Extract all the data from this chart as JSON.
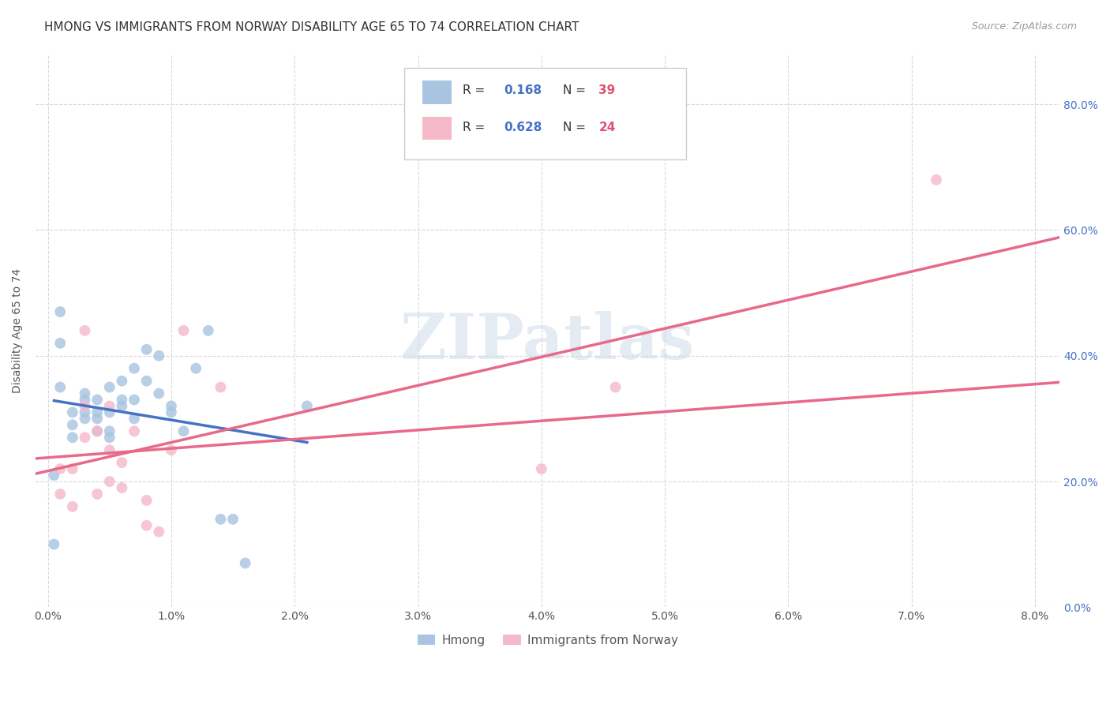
{
  "title": "HMONG VS IMMIGRANTS FROM NORWAY DISABILITY AGE 65 TO 74 CORRELATION CHART",
  "source": "Source: ZipAtlas.com",
  "ylabel_label": "Disability Age 65 to 74",
  "x_ticks": [
    0.0,
    0.01,
    0.02,
    0.03,
    0.04,
    0.05,
    0.06,
    0.07,
    0.08
  ],
  "x_tick_labels": [
    "0.0%",
    "1.0%",
    "2.0%",
    "3.0%",
    "4.0%",
    "5.0%",
    "6.0%",
    "7.0%",
    "8.0%"
  ],
  "y_ticks": [
    0.0,
    0.2,
    0.4,
    0.6,
    0.8
  ],
  "y_tick_labels": [
    "0.0%",
    "20.0%",
    "40.0%",
    "60.0%",
    "80.0%"
  ],
  "xlim": [
    -0.001,
    0.082
  ],
  "ylim": [
    0.05,
    0.88
  ],
  "hmong_color": "#a8c4e0",
  "norway_color": "#f4b8c8",
  "hmong_line_color": "#4472c4",
  "norway_line_color": "#e8698a",
  "dashed_line_color": "#b8cfe0",
  "R_hmong": 0.168,
  "N_hmong": 39,
  "R_norway": 0.628,
  "N_norway": 24,
  "hmong_scatter_x": [
    0.001,
    0.001,
    0.001,
    0.002,
    0.002,
    0.002,
    0.003,
    0.003,
    0.003,
    0.003,
    0.004,
    0.004,
    0.004,
    0.004,
    0.005,
    0.005,
    0.005,
    0.005,
    0.006,
    0.006,
    0.006,
    0.007,
    0.007,
    0.007,
    0.008,
    0.008,
    0.009,
    0.009,
    0.01,
    0.01,
    0.011,
    0.012,
    0.013,
    0.014,
    0.015,
    0.016,
    0.021,
    0.0005,
    0.0005
  ],
  "hmong_scatter_y": [
    0.47,
    0.42,
    0.35,
    0.31,
    0.29,
    0.27,
    0.3,
    0.31,
    0.33,
    0.34,
    0.28,
    0.3,
    0.31,
    0.33,
    0.27,
    0.28,
    0.31,
    0.35,
    0.32,
    0.33,
    0.36,
    0.3,
    0.33,
    0.38,
    0.36,
    0.41,
    0.34,
    0.4,
    0.31,
    0.32,
    0.28,
    0.38,
    0.44,
    0.14,
    0.14,
    0.07,
    0.32,
    0.21,
    0.1
  ],
  "norway_scatter_x": [
    0.001,
    0.001,
    0.002,
    0.002,
    0.003,
    0.003,
    0.004,
    0.004,
    0.005,
    0.005,
    0.005,
    0.006,
    0.006,
    0.007,
    0.008,
    0.008,
    0.009,
    0.01,
    0.011,
    0.014,
    0.04,
    0.046,
    0.072,
    0.003
  ],
  "norway_scatter_y": [
    0.18,
    0.22,
    0.16,
    0.22,
    0.27,
    0.32,
    0.18,
    0.28,
    0.2,
    0.25,
    0.32,
    0.19,
    0.23,
    0.28,
    0.13,
    0.17,
    0.12,
    0.25,
    0.44,
    0.35,
    0.22,
    0.35,
    0.68,
    0.44
  ],
  "background_color": "#ffffff",
  "grid_color": "#d8d8e0",
  "title_fontsize": 11,
  "label_fontsize": 10,
  "tick_fontsize": 10,
  "watermark_text": "ZIPatlas",
  "legend_R_color": "#4472c4",
  "legend_N_color": "#e05070"
}
